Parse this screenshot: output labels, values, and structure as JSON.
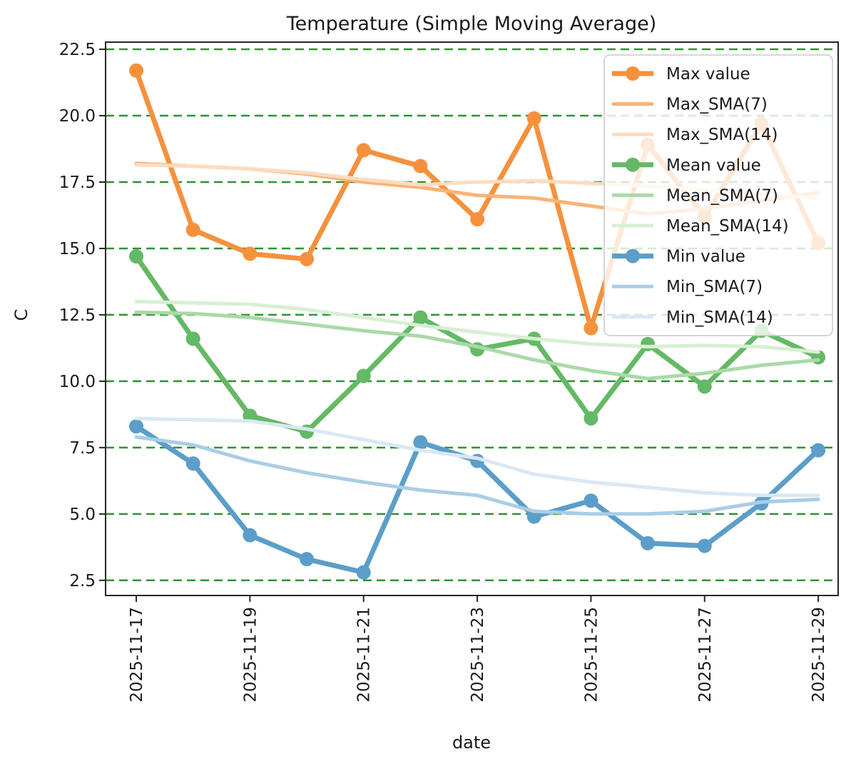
{
  "figure": {
    "title": "Temperature (Simple Moving Average)",
    "xlabel": "date",
    "ylabel": "C"
  },
  "chart_data": {
    "type": "line",
    "title": "Temperature (Simple Moving Average)",
    "xlabel": "date",
    "ylabel": "C",
    "x": [
      "2025-11-17",
      "2025-11-18",
      "2025-11-19",
      "2025-11-20",
      "2025-11-21",
      "2025-11-22",
      "2025-11-23",
      "2025-11-24",
      "2025-11-25",
      "2025-11-26",
      "2025-11-27",
      "2025-11-28",
      "2025-11-29"
    ],
    "x_tick_indices": [
      0,
      2,
      4,
      6,
      8,
      10,
      12
    ],
    "x_tick_labels": [
      "2025-11-17",
      "2025-11-19",
      "2025-11-21",
      "2025-11-23",
      "2025-11-25",
      "2025-11-27",
      "2025-11-29"
    ],
    "y_ticks": [
      2.5,
      5.0,
      7.5,
      10.0,
      12.5,
      15.0,
      17.5,
      20.0,
      22.5
    ],
    "ylim": [
      1.93,
      22.77
    ],
    "grid": {
      "visible": true,
      "style": "dashed",
      "orientation": "horizontal",
      "color": "#2e9430"
    },
    "text_color": "#1a1a1a",
    "spine_color": "#262626",
    "legend": {
      "position": "upper right",
      "background": "rgba(255,255,255,0.8)",
      "border_color": "#c9c9c9"
    },
    "series": [
      {
        "name": "Max value",
        "color": "#f5913d",
        "line_width": 7,
        "marker": true,
        "values": [
          21.7,
          15.7,
          14.8,
          14.6,
          18.7,
          18.1,
          16.1,
          19.9,
          12.0,
          18.9,
          16.2,
          19.7,
          15.2
        ]
      },
      {
        "name": "Max_SMA(7)",
        "color": "#f9b377",
        "line_width": 5,
        "marker": false,
        "values": [
          18.2,
          18.1,
          18.0,
          17.8,
          17.5,
          17.3,
          17.0,
          16.9,
          16.6,
          16.3,
          16.5,
          16.8,
          17.1
        ]
      },
      {
        "name": "Max_SMA(14)",
        "color": "#fbdcc0",
        "line_width": 5,
        "marker": false,
        "values": [
          18.15,
          18.1,
          18.0,
          17.85,
          17.6,
          17.4,
          17.5,
          17.55,
          17.45,
          17.35,
          17.2,
          17.05,
          16.9
        ]
      },
      {
        "name": "Mean value",
        "color": "#64b966",
        "line_width": 7,
        "marker": true,
        "values": [
          14.7,
          11.6,
          8.7,
          8.1,
          10.2,
          12.4,
          11.2,
          11.6,
          8.6,
          11.4,
          9.8,
          11.9,
          10.9
        ]
      },
      {
        "name": "Mean_SMA(7)",
        "color": "#abd9a8",
        "line_width": 5,
        "marker": false,
        "values": [
          12.6,
          12.55,
          12.4,
          12.15,
          11.9,
          11.7,
          11.3,
          10.8,
          10.4,
          10.1,
          10.3,
          10.6,
          10.8
        ]
      },
      {
        "name": "Mean_SMA(14)",
        "color": "#d8efd4",
        "line_width": 5,
        "marker": false,
        "values": [
          13.0,
          12.95,
          12.9,
          12.7,
          12.4,
          12.1,
          11.85,
          11.6,
          11.4,
          11.3,
          11.35,
          11.3,
          11.1
        ]
      },
      {
        "name": "Min value",
        "color": "#5b9ec9",
        "line_width": 7,
        "marker": true,
        "values": [
          8.3,
          6.9,
          4.2,
          3.3,
          2.8,
          7.7,
          7.0,
          4.9,
          5.5,
          3.9,
          3.8,
          5.4,
          7.4
        ]
      },
      {
        "name": "Min_SMA(7)",
        "color": "#a9cde5",
        "line_width": 5,
        "marker": false,
        "values": [
          7.9,
          7.6,
          7.0,
          6.55,
          6.2,
          5.9,
          5.7,
          5.1,
          5.0,
          5.0,
          5.1,
          5.45,
          5.55
        ]
      },
      {
        "name": "Min_SMA(14)",
        "color": "#d9e8f4",
        "line_width": 5,
        "marker": false,
        "values": [
          8.6,
          8.55,
          8.5,
          8.2,
          7.8,
          7.4,
          7.1,
          6.5,
          6.2,
          6.0,
          5.8,
          5.7,
          5.7
        ]
      }
    ]
  }
}
